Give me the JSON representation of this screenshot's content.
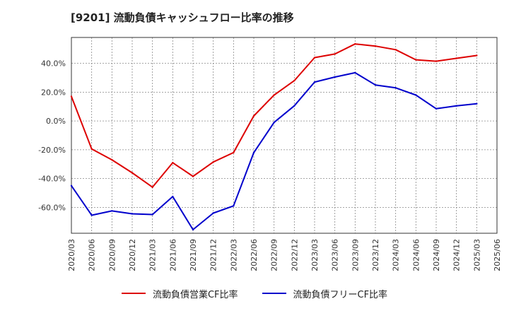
{
  "chart_data": {
    "type": "line",
    "title": "[9201]  流動負債キャッシュフロー比率の推移",
    "xlabel": "",
    "ylabel": "",
    "ylim": [
      -78,
      58
    ],
    "yticks": [
      -60,
      -40,
      -20,
      0,
      20,
      40
    ],
    "ytick_labels": [
      "-60.0%",
      "-40.0%",
      "-20.0%",
      "0.0%",
      "20.0%",
      "40.0%"
    ],
    "categories": [
      "2020/03",
      "2020/06",
      "2020/09",
      "2020/12",
      "2021/03",
      "2021/06",
      "2021/09",
      "2021/12",
      "2022/03",
      "2022/06",
      "2022/09",
      "2022/12",
      "2023/03",
      "2023/06",
      "2023/09",
      "2023/12",
      "2024/03",
      "2024/06",
      "2024/09",
      "2024/12",
      "2025/03",
      "2025/06"
    ],
    "grid": true,
    "legend_position": "bottom",
    "series": [
      {
        "name": "流動負債営業CF比率",
        "color": "#dd0000",
        "values": [
          17,
          -19.5,
          -27,
          -36,
          -46,
          -29,
          -38.5,
          -28.5,
          -22,
          3.5,
          18,
          28,
          44,
          46.5,
          53.5,
          52,
          49.5,
          42.5,
          41.5,
          43.5,
          45.5,
          null
        ]
      },
      {
        "name": "流動負債フリーCF比率",
        "color": "#0000cc",
        "values": [
          -45,
          -65.5,
          -62.5,
          -64.5,
          -65,
          -52.5,
          -75.5,
          -64,
          -59,
          -22,
          -1,
          10.5,
          27,
          30.5,
          33.5,
          25,
          23,
          18,
          8.5,
          10.5,
          12,
          null
        ]
      }
    ]
  }
}
